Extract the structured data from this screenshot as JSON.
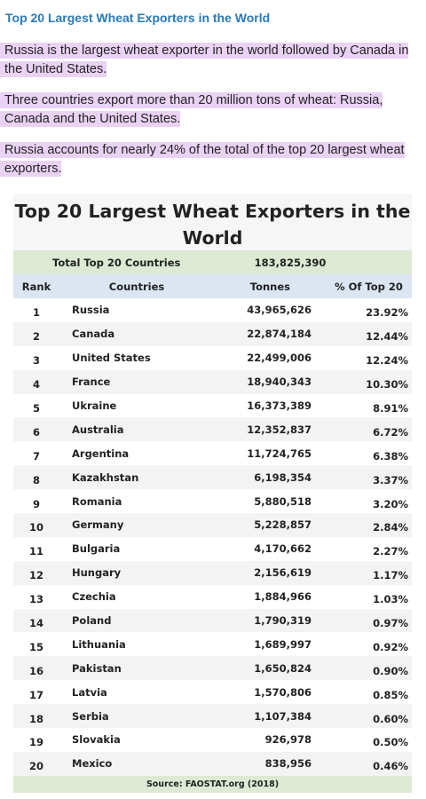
{
  "page": {
    "title": "Top 20 Largest Wheat Exporters in the World",
    "paragraphs": [
      "Russia is the largest wheat exporter in the world followed by Canada in the United States.",
      "Three countries export more than 20 million tons of wheat:  Russia, Canada and the United States.",
      "Russia accounts for nearly 24% of the total of the top 20 largest wheat exporters."
    ]
  },
  "table": {
    "title": "Top 20 Largest Wheat Exporters in the World",
    "total_label": "Total Top 20 Countries",
    "total_value": "183,825,390",
    "headers": {
      "rank": "Rank",
      "country": "Countries",
      "tonnes": "Tonnes",
      "pct": "% Of Top 20"
    },
    "rows": [
      {
        "rank": "1",
        "country": "Russia",
        "tonnes": "43,965,626",
        "pct": "23.92%"
      },
      {
        "rank": "2",
        "country": "Canada",
        "tonnes": "22,874,184",
        "pct": "12.44%"
      },
      {
        "rank": "3",
        "country": "United States",
        "tonnes": "22,499,006",
        "pct": "12.24%"
      },
      {
        "rank": "4",
        "country": "France",
        "tonnes": "18,940,343",
        "pct": "10.30%"
      },
      {
        "rank": "5",
        "country": "Ukraine",
        "tonnes": "16,373,389",
        "pct": "8.91%"
      },
      {
        "rank": "6",
        "country": "Australia",
        "tonnes": "12,352,837",
        "pct": "6.72%"
      },
      {
        "rank": "7",
        "country": "Argentina",
        "tonnes": "11,724,765",
        "pct": "6.38%"
      },
      {
        "rank": "8",
        "country": "Kazakhstan",
        "tonnes": "6,198,354",
        "pct": "3.37%"
      },
      {
        "rank": "9",
        "country": "Romania",
        "tonnes": "5,880,518",
        "pct": "3.20%"
      },
      {
        "rank": "10",
        "country": "Germany",
        "tonnes": "5,228,857",
        "pct": "2.84%"
      },
      {
        "rank": "11",
        "country": "Bulgaria",
        "tonnes": "4,170,662",
        "pct": "2.27%"
      },
      {
        "rank": "12",
        "country": "Hungary",
        "tonnes": "2,156,619",
        "pct": "1.17%"
      },
      {
        "rank": "13",
        "country": "Czechia",
        "tonnes": "1,884,966",
        "pct": "1.03%"
      },
      {
        "rank": "14",
        "country": "Poland",
        "tonnes": "1,790,319",
        "pct": "0.97%"
      },
      {
        "rank": "15",
        "country": "Lithuania",
        "tonnes": "1,689,997",
        "pct": "0.92%"
      },
      {
        "rank": "16",
        "country": "Pakistan",
        "tonnes": "1,650,824",
        "pct": "0.90%"
      },
      {
        "rank": "17",
        "country": "Latvia",
        "tonnes": "1,570,806",
        "pct": "0.85%"
      },
      {
        "rank": "18",
        "country": "Serbia",
        "tonnes": "1,107,384",
        "pct": "0.60%"
      },
      {
        "rank": "19",
        "country": "Slovakia",
        "tonnes": "926,978",
        "pct": "0.50%"
      },
      {
        "rank": "20",
        "country": "Mexico",
        "tonnes": "838,956",
        "pct": "0.46%"
      }
    ],
    "source": "Source:  FAOSTAT.org (2018)"
  },
  "colors": {
    "title_blue": "#2a7ab8",
    "highlight_purple": "#ead2f5",
    "total_green": "#dde9d2",
    "header_blue": "#dbe6f2",
    "alt_row_gray": "#f3f3f3"
  }
}
